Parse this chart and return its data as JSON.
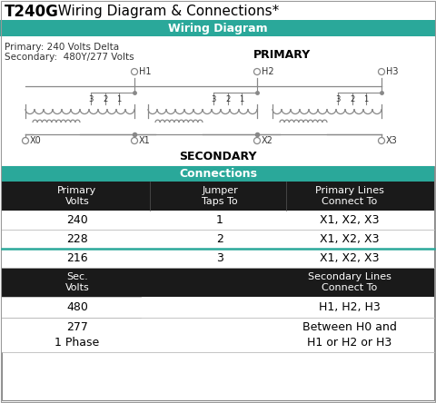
{
  "title_bold": "T240G",
  "title_normal": "  Wiring Diagram & Connections*",
  "section1_header": "Wiring Diagram",
  "section2_header": "Connections",
  "teal_color": "#2aA89A",
  "black_color": "#1a1a1a",
  "white_color": "#ffffff",
  "primary_label_1": "Primary: 240 Volts Delta",
  "primary_label_2": "Secondary:  480Y/277 Volts",
  "primary_word": "PRIMARY",
  "secondary_word": "SECONDARY",
  "table_col_centers": [
    85,
    242,
    385
  ],
  "table_headers": [
    "Primary\nVolts",
    "Jumper\nTaps To",
    "Primary Lines\nConnect To"
  ],
  "table_rows": [
    [
      "240",
      "1",
      "X1, X2, X3"
    ],
    [
      "228",
      "2",
      "X1, X2, X3"
    ],
    [
      "216",
      "3",
      "X1, X2, X3"
    ]
  ],
  "sec_header_left": "Sec.\nVolts",
  "sec_header_right": "Secondary Lines\nConnect To",
  "sec_rows": [
    [
      "480",
      "",
      "H1, H2, H3"
    ],
    [
      "277\n1 Phase",
      "",
      "Between H0 and\nH1 or H2 or H3"
    ]
  ],
  "bg_color": "#ffffff",
  "wire_color": "#888888",
  "text_dark": "#333333"
}
